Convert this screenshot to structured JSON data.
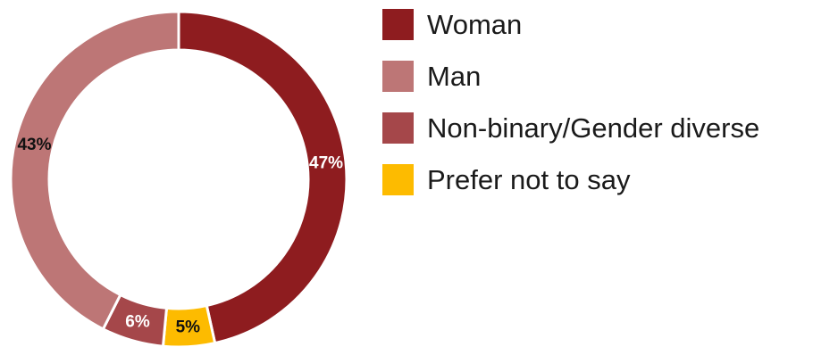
{
  "chart_data": {
    "type": "pie",
    "variant": "donut",
    "categories": [
      "Woman",
      "Man",
      "Non-binary/Gender diverse",
      "Prefer not to say"
    ],
    "values": [
      47,
      43,
      6,
      5
    ],
    "data_labels": [
      "47%",
      "43%",
      "6%",
      "5%"
    ],
    "colors": [
      "#8e1c1f",
      "#bd7676",
      "#a5474a",
      "#fdbb00"
    ],
    "label_colors": [
      "#ffffff",
      "#111111",
      "#ffffff",
      "#111111"
    ],
    "legend_position": "right"
  }
}
